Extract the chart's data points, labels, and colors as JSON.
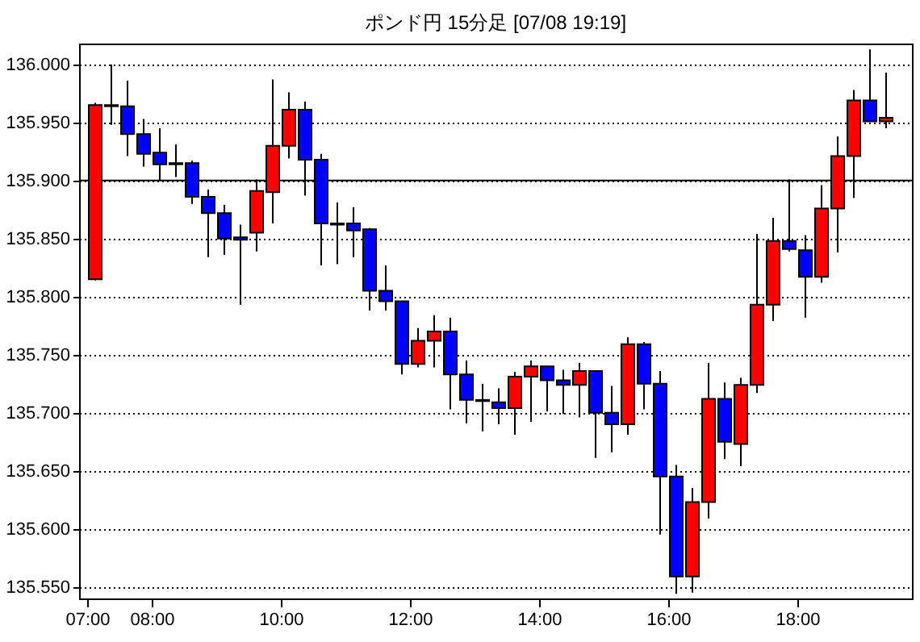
{
  "chart_data": {
    "type": "candlestick",
    "title": "ポンド円 15分足 [07/08 19:19]",
    "x": [
      7.125,
      7.375,
      7.625,
      7.875,
      8.125,
      8.375,
      8.625,
      8.875,
      9.125,
      9.375,
      9.625,
      9.875,
      10.125,
      10.375,
      10.625,
      10.875,
      11.125,
      11.375,
      11.625,
      11.875,
      12.125,
      12.375,
      12.625,
      12.875,
      13.125,
      13.375,
      13.625,
      13.875,
      14.125,
      14.375,
      14.625,
      14.875,
      15.125,
      15.375,
      15.625,
      15.875,
      16.125,
      16.375,
      16.625,
      16.875,
      17.125,
      17.375,
      17.625,
      17.875,
      18.125,
      18.375,
      18.625,
      18.875,
      19.125,
      19.375
    ],
    "ohlc": [
      [
        135.815,
        135.967,
        135.814,
        135.965
      ],
      [
        135.965,
        136.0,
        135.948,
        135.964
      ],
      [
        135.964,
        135.986,
        135.921,
        135.94
      ],
      [
        135.94,
        135.953,
        135.912,
        135.923
      ],
      [
        135.924,
        135.945,
        135.9,
        135.914
      ],
      [
        135.915,
        135.931,
        135.903,
        135.914
      ],
      [
        135.915,
        135.917,
        135.88,
        135.886
      ],
      [
        135.886,
        135.892,
        135.834,
        135.872
      ],
      [
        135.872,
        135.879,
        135.836,
        135.85
      ],
      [
        135.851,
        135.862,
        135.793,
        135.849
      ],
      [
        135.855,
        135.901,
        135.839,
        135.891
      ],
      [
        135.89,
        135.987,
        135.863,
        135.93
      ],
      [
        135.93,
        135.976,
        135.919,
        135.961
      ],
      [
        135.961,
        135.968,
        135.887,
        135.918
      ],
      [
        135.918,
        135.923,
        135.827,
        135.863
      ],
      [
        135.863,
        135.881,
        135.828,
        135.862
      ],
      [
        135.863,
        135.877,
        135.834,
        135.857
      ],
      [
        135.858,
        135.859,
        135.788,
        135.805
      ],
      [
        135.805,
        135.827,
        135.788,
        135.796
      ],
      [
        135.796,
        135.796,
        135.733,
        135.742
      ],
      [
        135.742,
        135.773,
        135.739,
        135.762
      ],
      [
        135.762,
        135.784,
        135.739,
        135.77
      ],
      [
        135.77,
        135.782,
        135.703,
        135.733
      ],
      [
        135.733,
        135.745,
        135.691,
        135.711
      ],
      [
        135.711,
        135.725,
        135.684,
        135.71
      ],
      [
        135.709,
        135.721,
        135.69,
        135.704
      ],
      [
        135.704,
        135.735,
        135.681,
        135.731
      ],
      [
        135.731,
        135.745,
        135.692,
        135.74
      ],
      [
        135.74,
        135.74,
        135.701,
        135.728
      ],
      [
        135.728,
        135.737,
        135.699,
        135.724
      ],
      [
        135.724,
        135.743,
        135.696,
        135.736
      ],
      [
        135.736,
        135.736,
        135.661,
        135.7
      ],
      [
        135.7,
        135.723,
        135.666,
        135.69
      ],
      [
        135.69,
        135.765,
        135.681,
        135.759
      ],
      [
        135.759,
        135.761,
        135.703,
        135.725
      ],
      [
        135.725,
        135.736,
        135.595,
        135.645
      ],
      [
        135.645,
        135.655,
        135.544,
        135.559
      ],
      [
        135.559,
        135.635,
        135.545,
        135.623
      ],
      [
        135.623,
        135.743,
        135.609,
        135.712
      ],
      [
        135.712,
        135.726,
        135.66,
        135.675
      ],
      [
        135.673,
        135.73,
        135.654,
        135.724
      ],
      [
        135.724,
        135.854,
        135.717,
        135.793
      ],
      [
        135.793,
        135.868,
        135.779,
        135.848
      ],
      [
        135.848,
        135.901,
        135.839,
        135.841
      ],
      [
        135.84,
        135.853,
        135.782,
        135.817
      ],
      [
        135.817,
        135.896,
        135.812,
        135.876
      ],
      [
        135.876,
        135.938,
        135.838,
        135.921
      ],
      [
        135.921,
        135.978,
        135.885,
        135.969
      ],
      [
        135.969,
        136.013,
        135.951,
        135.951
      ],
      [
        135.951,
        135.993,
        135.945,
        135.954
      ]
    ],
    "colors": [
      "#ff0000",
      "#0000ff",
      "#0000ff",
      "#0000ff",
      "#0000ff",
      "#0000ff",
      "#0000ff",
      "#0000ff",
      "#0000ff",
      "#0000ff",
      "#ff0000",
      "#ff0000",
      "#ff0000",
      "#0000ff",
      "#0000ff",
      "#0000ff",
      "#0000ff",
      "#0000ff",
      "#0000ff",
      "#0000ff",
      "#ff0000",
      "#ff0000",
      "#0000ff",
      "#0000ff",
      "#0000ff",
      "#0000ff",
      "#ff0000",
      "#ff0000",
      "#0000ff",
      "#0000ff",
      "#ff0000",
      "#0000ff",
      "#0000ff",
      "#ff0000",
      "#0000ff",
      "#0000ff",
      "#0000ff",
      "#ff0000",
      "#ff0000",
      "#0000ff",
      "#ff0000",
      "#ff0000",
      "#ff0000",
      "#0000ff",
      "#0000ff",
      "#ff0000",
      "#ff0000",
      "#ff0000",
      "#0000ff",
      "#ff0000"
    ],
    "xlim": [
      6.875,
      19.775
    ],
    "xticks": [
      {
        "value": 7,
        "label": "07:00"
      },
      {
        "value": 8,
        "label": "08:00"
      },
      {
        "value": 10,
        "label": "10:00"
      },
      {
        "value": 12,
        "label": "12:00"
      },
      {
        "value": 14,
        "label": "14:00"
      },
      {
        "value": 16,
        "label": "16:00"
      },
      {
        "value": 18,
        "label": "18:00"
      }
    ],
    "ylim": [
      135.54,
      136.018
    ],
    "yticks": [
      {
        "value": 135.55,
        "label": "135.550"
      },
      {
        "value": 135.6,
        "label": "135.600"
      },
      {
        "value": 135.65,
        "label": "135.650"
      },
      {
        "value": 135.7,
        "label": "135.700"
      },
      {
        "value": 135.75,
        "label": "135.750"
      },
      {
        "value": 135.8,
        "label": "135.800"
      },
      {
        "value": 135.85,
        "label": "135.850"
      },
      {
        "value": 135.9,
        "label": "135.900"
      },
      {
        "value": 135.95,
        "label": "135.950"
      },
      {
        "value": 136,
        "label": "136.000"
      }
    ],
    "grid": "y",
    "ref_lines": [
      {
        "axis": "y",
        "value": 135.9,
        "color": "#000000",
        "line_style": "solid"
      }
    ]
  }
}
